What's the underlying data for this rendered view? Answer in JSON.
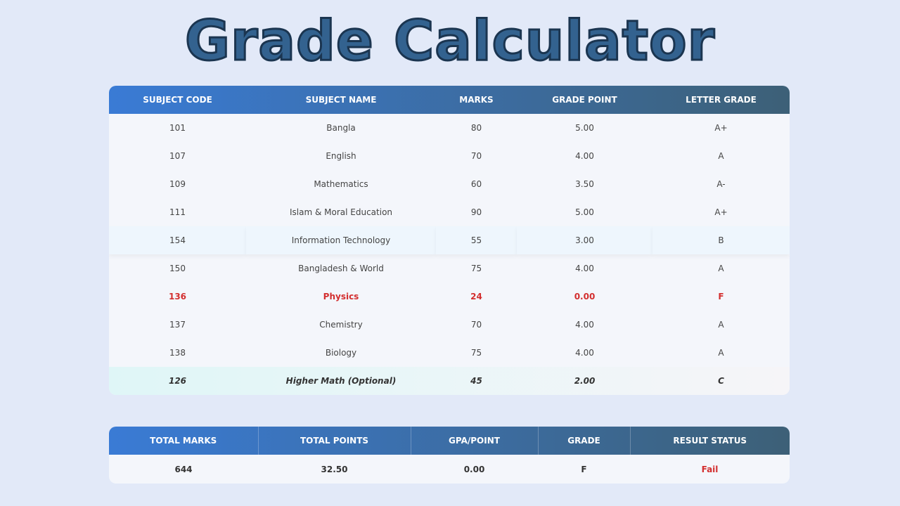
{
  "header": {
    "title": "Grade Calculator"
  },
  "table": {
    "headers": [
      "SUBJECT CODE",
      "SUBJECT NAME",
      "MARKS",
      "GRADE POINT",
      "LETTER GRADE"
    ],
    "rows": [
      [
        "101",
        "Bangla",
        "80",
        "5.00",
        "A+"
      ],
      [
        "107",
        "English",
        "70",
        "4.00",
        "A"
      ],
      [
        "109",
        "Mathematics",
        "60",
        "3.50",
        "A-"
      ],
      [
        "111",
        "Islam & Moral Education",
        "90",
        "5.00",
        "A+"
      ],
      [
        "154",
        "Information Technology",
        "55",
        "3.00",
        "B"
      ],
      [
        "150",
        "Bangladesh & World",
        "75",
        "4.00",
        "A"
      ],
      [
        "136",
        "Physics",
        "24",
        "0.00",
        "F"
      ],
      [
        "137",
        "Chemistry",
        "70",
        "4.00",
        "A"
      ],
      [
        "138",
        "Biology",
        "75",
        "4.00",
        "A"
      ],
      [
        "126",
        "Higher Math (Optional)",
        "45",
        "2.00",
        "C"
      ]
    ]
  },
  "summary": {
    "headers": [
      "TOTAL MARKS",
      "TOTAL POINTS",
      "GPA/POINT",
      "GRADE",
      "RESULT STATUS"
    ],
    "values": [
      "644",
      "32.50",
      "0.00",
      "F",
      "Fail"
    ]
  }
}
